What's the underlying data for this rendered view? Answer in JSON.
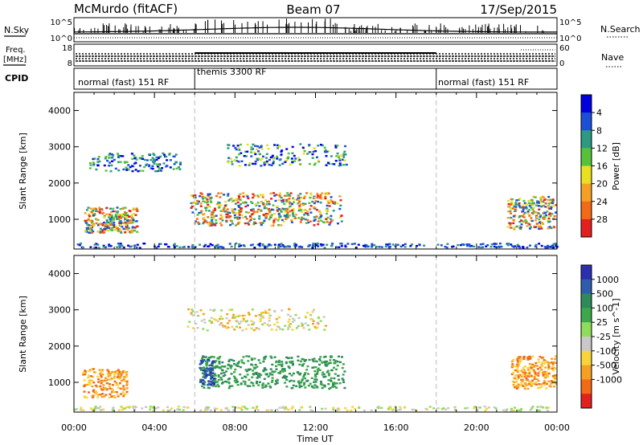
{
  "header": {
    "radar": "McMurdo (fitACF)",
    "beam": "Beam 07",
    "date": "17/Sep/2015"
  },
  "top_panels": {
    "nsky_label": "N.Sky",
    "nsearch_label": "N.Search",
    "freq_label_line1": "Freq.",
    "freq_label_line2": "[MHz]",
    "nave_label": "Nave",
    "cpid_label": "CPID",
    "nsky_ticks": [
      "10^5",
      "10^0"
    ],
    "nsearch_ticks": [
      "10^5",
      "10^0"
    ],
    "freq_ticks": [
      "18",
      "8"
    ],
    "nave_ticks": [
      "60",
      "0"
    ],
    "cpid_segments": [
      "normal (fast) 151 RF",
      "themis 3300 RF",
      "normal (fast) 151 RF"
    ]
  },
  "x_axis": {
    "ticks": [
      "00:00",
      "04:00",
      "08:00",
      "12:00",
      "16:00",
      "20:00",
      "00:00"
    ],
    "label": "Time UT"
  },
  "chart_data": [
    {
      "type": "heatmap",
      "title": "",
      "xlabel": "Time UT",
      "ylabel": "Slant Range [km]",
      "xlim": [
        0,
        24
      ],
      "ylim": [
        180,
        4500
      ],
      "yticks": [
        "1000",
        "2000",
        "3000",
        "4000"
      ],
      "colorbar_label": "Power [dB]",
      "colorbar_ticks": [
        "4",
        "8",
        "12",
        "16",
        "20",
        "24",
        "28"
      ],
      "colorbar_colors": [
        "#0000e0",
        "#1b4fd8",
        "#2c9a82",
        "#55c23a",
        "#e8e020",
        "#f5a023",
        "#f26a17",
        "#e4201e"
      ],
      "mode_boundaries_hours": [
        6.0,
        18.0
      ]
    },
    {
      "type": "heatmap",
      "title": "",
      "xlabel": "Time UT",
      "ylabel": "Slant Range [km]",
      "xlim": [
        0,
        24
      ],
      "ylim": [
        180,
        4500
      ],
      "yticks": [
        "1000",
        "2000",
        "3000",
        "4000"
      ],
      "colorbar_label": "Velocity [m s^-1]",
      "colorbar_ticks": [
        "1000",
        "500",
        "100",
        "25",
        "-25",
        "-100",
        "-500",
        "-1000"
      ],
      "colorbar_colors": [
        "#2a2fb0",
        "#2e5dae",
        "#2f8a5a",
        "#3ca84a",
        "#8edc5a",
        "#c8c8c8",
        "#f7d53a",
        "#f5a023",
        "#f26a17",
        "#e4201e"
      ],
      "mode_boundaries_hours": [
        6.0,
        18.0
      ]
    }
  ]
}
